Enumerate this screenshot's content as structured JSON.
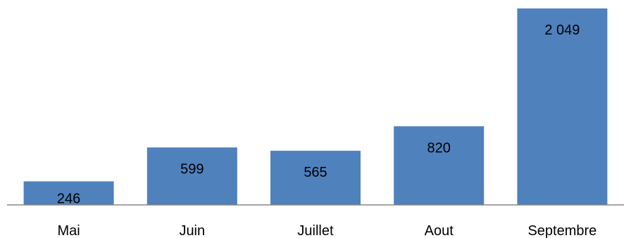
{
  "chart_data": {
    "type": "bar",
    "categories": [
      "Mai",
      "Juin",
      "Juillet",
      "Aout",
      "Septembre"
    ],
    "values": [
      246,
      599,
      565,
      820,
      2049
    ],
    "value_labels": [
      "246",
      "599",
      "565",
      "820",
      "2 049"
    ],
    "bar_color": "#4F81BD",
    "axis_color": "#868686",
    "ylim": [
      0,
      2049
    ],
    "grid": false,
    "legend": "none",
    "xlabel": "",
    "ylabel": ""
  }
}
